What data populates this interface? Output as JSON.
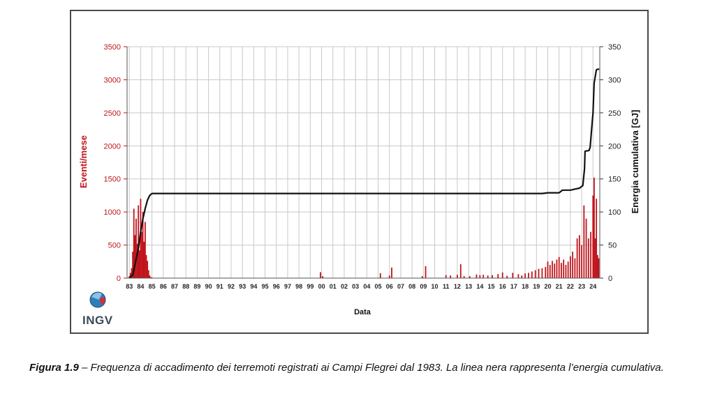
{
  "caption": {
    "label": "Figura 1.9",
    "text": " – Frequenza di accadimento dei terremoti registrati ai Campi Flegrei dal 1983. La linea nera rappresenta l’energia cumulativa."
  },
  "logo": {
    "text": "INGV"
  },
  "chart_data": {
    "type": "bar",
    "xlabel": "Data",
    "ylabel_left": "Eventi/mese",
    "ylabel_right": "Energia cumulativa [GJ]",
    "ylim_left": [
      0,
      3500
    ],
    "ylim_right": [
      0,
      350
    ],
    "yticks_left": [
      0,
      500,
      1000,
      1500,
      2000,
      2500,
      3000,
      3500
    ],
    "yticks_right": [
      0,
      50,
      100,
      150,
      200,
      250,
      300,
      350
    ],
    "x_tick_labels": [
      "83",
      "84",
      "85",
      "86",
      "87",
      "88",
      "89",
      "90",
      "91",
      "92",
      "93",
      "94",
      "95",
      "96",
      "97",
      "98",
      "99",
      "00",
      "01",
      "02",
      "03",
      "04",
      "05",
      "06",
      "07",
      "08",
      "09",
      "10",
      "11",
      "12",
      "13",
      "14",
      "15",
      "16",
      "17",
      "18",
      "19",
      "20",
      "21",
      "22",
      "23",
      "24"
    ],
    "x_range_years": [
      1982.8,
      2024.6
    ],
    "grid": true,
    "colors": {
      "bars": "#c0141c",
      "line": "#111111",
      "grid": "#c8c8c8",
      "left_axis": "#c0141c"
    },
    "series": [
      {
        "name": "Eventi/mese",
        "kind": "bar",
        "x": [
          1983.0,
          1983.1,
          1983.2,
          1983.3,
          1983.4,
          1983.5,
          1983.6,
          1983.7,
          1983.8,
          1983.9,
          1984.0,
          1984.1,
          1984.2,
          1984.3,
          1984.4,
          1984.5,
          1984.6,
          1984.7,
          1984.8,
          1984.9,
          1985.0,
          1985.2,
          1999.9,
          2000.1,
          2005.2,
          2006.0,
          2006.2,
          2008.9,
          2009.2,
          2011.0,
          2011.4,
          2012.0,
          2012.3,
          2012.6,
          2013.1,
          2013.7,
          2014.0,
          2014.3,
          2014.7,
          2015.1,
          2015.6,
          2016.0,
          2016.4,
          2016.9,
          2017.4,
          2017.7,
          2018.0,
          2018.3,
          2018.6,
          2018.9,
          2019.2,
          2019.5,
          2019.8,
          2020.0,
          2020.2,
          2020.4,
          2020.6,
          2020.8,
          2021.0,
          2021.2,
          2021.4,
          2021.6,
          2021.8,
          2022.0,
          2022.2,
          2022.4,
          2022.6,
          2022.8,
          2023.0,
          2023.2,
          2023.4,
          2023.6,
          2023.8,
          2024.0,
          2024.1,
          2024.2,
          2024.3,
          2024.4,
          2024.5
        ],
        "values": [
          30,
          80,
          150,
          400,
          1050,
          650,
          900,
          520,
          1100,
          420,
          1200,
          700,
          1000,
          550,
          850,
          350,
          260,
          120,
          40,
          15,
          10,
          5,
          90,
          30,
          75,
          40,
          160,
          30,
          180,
          45,
          40,
          50,
          210,
          30,
          30,
          55,
          45,
          50,
          40,
          45,
          60,
          85,
          35,
          80,
          60,
          40,
          70,
          80,
          100,
          120,
          140,
          150,
          170,
          250,
          200,
          260,
          220,
          280,
          320,
          230,
          280,
          200,
          250,
          330,
          400,
          300,
          600,
          650,
          500,
          1100,
          900,
          600,
          700,
          1250,
          1520,
          600,
          1200,
          350,
          300
        ]
      },
      {
        "name": "Energia cumulativa [GJ]",
        "kind": "line",
        "x": [
          1983.0,
          1983.3,
          1983.5,
          1983.8,
          1984.0,
          1984.2,
          1984.4,
          1984.6,
          1984.8,
          1985.0,
          2019.5,
          2020.0,
          2021.0,
          2021.3,
          2022.0,
          2022.5,
          2022.8,
          2023.1,
          2023.25,
          2023.3,
          2023.65,
          2023.75,
          2023.85,
          2024.0,
          2024.1,
          2024.2,
          2024.3,
          2024.4,
          2024.55
        ],
        "values": [
          0,
          5,
          20,
          45,
          70,
          90,
          105,
          118,
          125,
          128,
          128,
          129,
          129,
          133,
          133,
          135,
          136,
          140,
          165,
          192,
          193,
          198,
          220,
          250,
          295,
          305,
          315,
          316,
          316
        ]
      }
    ]
  }
}
